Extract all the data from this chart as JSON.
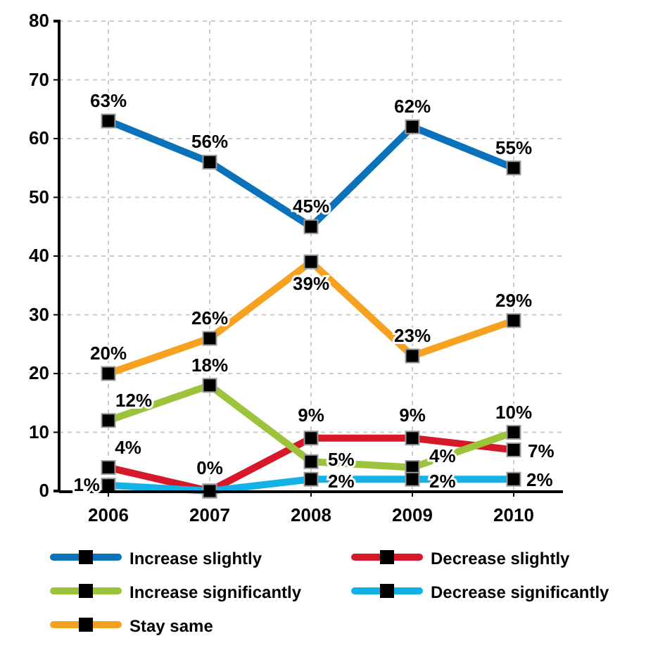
{
  "chart_data": {
    "type": "line",
    "categories": [
      "2006",
      "2007",
      "2008",
      "2009",
      "2010"
    ],
    "ylim": [
      0,
      80
    ],
    "yticks": [
      0,
      10,
      20,
      30,
      40,
      50,
      60,
      70,
      80
    ],
    "grid": true,
    "legend": "bottom",
    "marker": "square",
    "line_style": "solid",
    "series": [
      {
        "name": "Increase slightly",
        "color": "#0a72ba",
        "values": [
          63,
          56,
          45,
          62,
          55
        ],
        "value_labels": [
          "63%",
          "56%",
          "45%",
          "62%",
          "55%"
        ]
      },
      {
        "name": "Decrease slightly",
        "color": "#d7182a",
        "values": [
          4,
          0,
          9,
          9,
          7
        ],
        "value_labels": [
          "4%",
          "0%",
          "9%",
          "9%",
          "7%"
        ]
      },
      {
        "name": "Increase significantly",
        "color": "#9bc43a",
        "values": [
          12,
          18,
          5,
          4,
          10
        ],
        "value_labels": [
          "12%",
          "18%",
          "5%",
          "4%",
          "10%"
        ]
      },
      {
        "name": "Decrease significantly",
        "color": "#12b2e6",
        "values": [
          1,
          0,
          2,
          2,
          2
        ],
        "value_labels": [
          "1%",
          null,
          "2%",
          "2%",
          "2%"
        ]
      },
      {
        "name": "Stay same",
        "color": "#f7a121",
        "values": [
          20,
          26,
          39,
          23,
          29
        ],
        "value_labels": [
          "20%",
          "26%",
          "39%",
          "23%",
          "29%"
        ]
      }
    ]
  }
}
